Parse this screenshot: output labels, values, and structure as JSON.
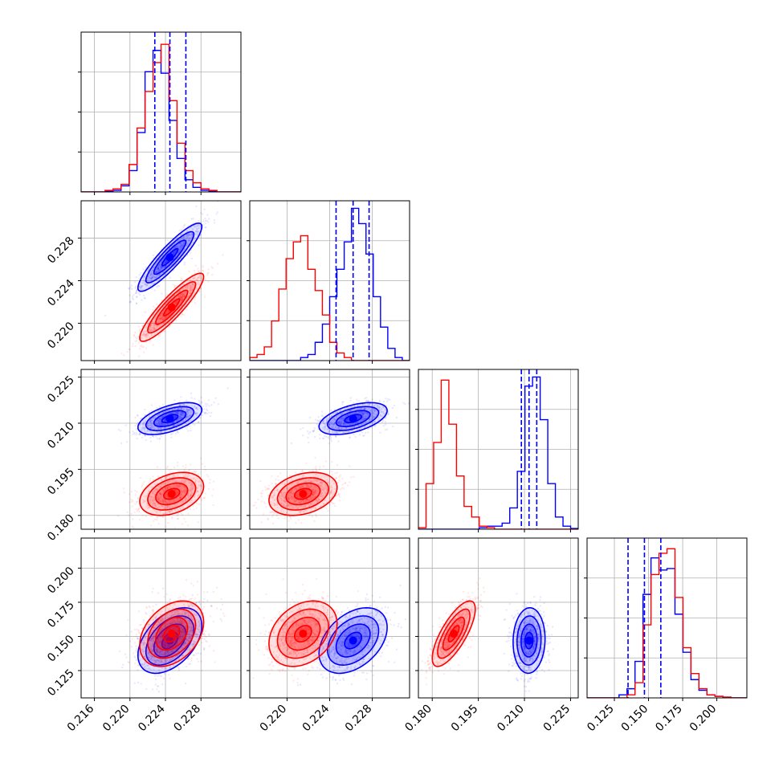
{
  "chart_data": {
    "type": "corner",
    "grid": true,
    "legend": "none",
    "colors": {
      "series_a": "#0000ff",
      "series_b": "#ff0000",
      "grid": "#b0b0b0",
      "axes": "#000000"
    },
    "parameters": [
      {
        "range": [
          0.2145,
          0.2325
        ],
        "ticks": [
          0.216,
          0.22,
          0.224,
          0.228
        ],
        "tick_labels": [
          "0.216",
          "0.220",
          "0.224",
          "0.228"
        ],
        "row_ticks": [
          0.22,
          0.224,
          0.228
        ],
        "row_tick_labels": [
          "0.220",
          "0.224",
          "0.228"
        ]
      },
      {
        "range": [
          0.2165,
          0.2315
        ],
        "ticks": [
          0.22,
          0.224,
          0.228
        ],
        "tick_labels": [
          "0.220",
          "0.224",
          "0.228"
        ],
        "row_ticks": [
          0.22,
          0.224,
          0.228
        ],
        "row_tick_labels": [
          "0.220",
          "0.224",
          "0.228"
        ]
      },
      {
        "range": [
          0.1755,
          0.2275
        ],
        "ticks": [
          0.18,
          0.195,
          0.21,
          0.225
        ],
        "tick_labels": [
          "0.180",
          "0.195",
          "0.210",
          "0.225"
        ],
        "row_ticks": [
          0.18,
          0.195,
          0.21,
          0.225
        ],
        "row_tick_labels": [
          "0.180",
          "0.195",
          "0.210",
          "0.225"
        ]
      },
      {
        "range": [
          0.105,
          0.222
        ],
        "ticks": [
          0.125,
          0.15,
          0.175,
          0.2
        ],
        "tick_labels": [
          "0.125",
          "0.150",
          "0.175",
          "0.200"
        ],
        "row_ticks": [
          0.125,
          0.15,
          0.175,
          0.2
        ],
        "row_tick_labels": [
          "0.125",
          "0.150",
          "0.175",
          "0.200"
        ]
      }
    ],
    "series": [
      {
        "color": "#0000ff",
        "mean": [
          0.2245,
          0.2262,
          0.2115,
          0.147
        ],
        "std": [
          0.0018,
          0.0016,
          0.0026,
          0.012
        ],
        "quantiles": [
          [
            0.2228,
            0.2245,
            0.2263
          ],
          [
            0.2246,
            0.2262,
            0.2277
          ],
          [
            0.209,
            0.2115,
            0.214
          ],
          [
            0.135,
            0.147,
            0.159
          ]
        ],
        "correlation": [
          [
            1,
            0.9,
            0.55,
            0.45
          ],
          [
            0.9,
            1,
            0.5,
            0.4
          ],
          [
            0.55,
            0.5,
            1,
            0.05
          ],
          [
            0.45,
            0.4,
            0.05,
            1
          ]
        ]
      },
      {
        "color": "#ff0000",
        "mean": [
          0.2247,
          0.2215,
          0.187,
          0.152
        ],
        "std": [
          0.0018,
          0.0016,
          0.0035,
          0.012
        ],
        "correlation": [
          [
            1,
            0.9,
            0.35,
            0.35
          ],
          [
            0.9,
            1,
            0.3,
            0.3
          ],
          [
            0.35,
            0.3,
            1,
            0.75
          ],
          [
            0.35,
            0.3,
            0.75,
            1
          ]
        ]
      }
    ],
    "histograms": [
      {
        "series": [
          {
            "color": "#0000ff",
            "edges_range": [
              0.2145,
              0.2325
            ],
            "counts": [
              0,
              0,
              0,
              0.005,
              0.01,
              0.04,
              0.14,
              0.39,
              0.79,
              0.93,
              0.78,
              0.47,
              0.22,
              0.08,
              0.03,
              0.01,
              0.005,
              0,
              0,
              0
            ]
          },
          {
            "color": "#ff0000",
            "edges_range": [
              0.2145,
              0.2325
            ],
            "counts": [
              0,
              0,
              0,
              0.01,
              0.02,
              0.05,
              0.18,
              0.42,
              0.66,
              0.85,
              0.97,
              0.6,
              0.32,
              0.14,
              0.06,
              0.02,
              0.01,
              0,
              0,
              0
            ]
          }
        ],
        "ylim": [
          0,
          1.05
        ]
      },
      {
        "series": [
          {
            "color": "#0000ff",
            "edges_range": [
              0.2165,
              0.2315
            ],
            "counts": [
              0,
              0,
              0,
              0,
              0,
              0,
              0,
              0.02,
              0.04,
              0.12,
              0.24,
              0.42,
              0.6,
              0.78,
              1.0,
              0.9,
              0.7,
              0.42,
              0.22,
              0.08,
              0.02,
              0
            ]
          },
          {
            "color": "#ff0000",
            "edges_range": [
              0.2165,
              0.2315
            ],
            "counts": [
              0.02,
              0.04,
              0.09,
              0.26,
              0.47,
              0.67,
              0.78,
              0.82,
              0.6,
              0.46,
              0.3,
              0.12,
              0.05,
              0.02,
              0,
              0,
              0,
              0,
              0,
              0,
              0,
              0
            ]
          }
        ],
        "ylim": [
          0,
          1.05
        ]
      },
      {
        "series": [
          {
            "color": "#0000ff",
            "edges_range": [
              0.1755,
              0.2275
            ],
            "counts": [
              0,
              0,
              0,
              0,
              0,
              0,
              0,
              0,
              0.01,
              0.02,
              0.02,
              0.04,
              0.14,
              0.38,
              0.94,
              1.0,
              0.72,
              0.3,
              0.08,
              0.02,
              0.005
            ]
          },
          {
            "color": "#ff0000",
            "edges_range": [
              0.1755,
              0.2275
            ],
            "counts": [
              0.01,
              0.3,
              0.57,
              0.98,
              0.69,
              0.35,
              0.15,
              0.08,
              0.02,
              0.01,
              0,
              0,
              0,
              0,
              0,
              0,
              0,
              0,
              0,
              0,
              0
            ]
          }
        ],
        "ylim": [
          0,
          1.05
        ]
      },
      {
        "series": [
          {
            "color": "#0000ff",
            "edges_range": [
              0.105,
              0.222
            ],
            "counts": [
              0,
              0,
              0,
              0,
              0.02,
              0.06,
              0.24,
              0.68,
              0.92,
              0.84,
              0.85,
              0.55,
              0.3,
              0.12,
              0.05,
              0.02,
              0.01,
              0.005,
              0,
              0
            ]
          },
          {
            "color": "#ff0000",
            "edges_range": [
              0.105,
              0.222
            ],
            "counts": [
              0,
              0,
              0,
              0,
              0,
              0.02,
              0.1,
              0.48,
              0.81,
              0.95,
              0.98,
              0.66,
              0.33,
              0.16,
              0.06,
              0.02,
              0.01,
              0.005,
              0,
              0
            ]
          }
        ],
        "ylim": [
          0,
          1.05
        ]
      }
    ],
    "quantile_lines": {
      "color": "#0000ff",
      "style": "dashed"
    }
  }
}
